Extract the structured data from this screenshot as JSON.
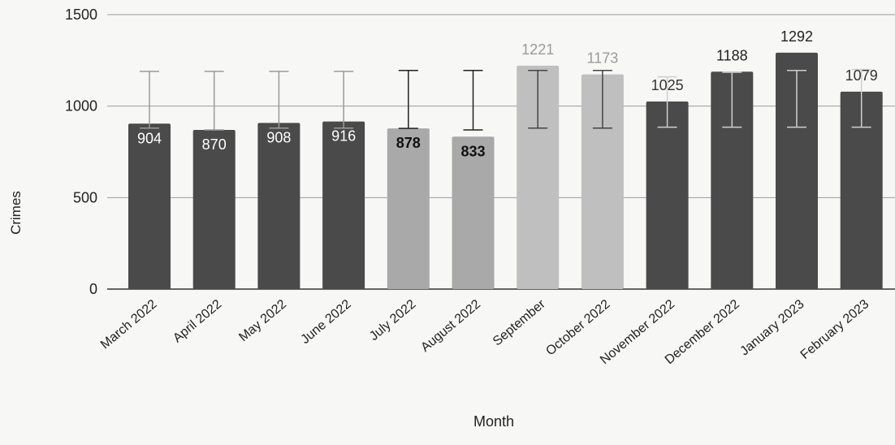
{
  "chart_data": {
    "type": "bar",
    "title": "",
    "xlabel": "Month",
    "ylabel": "Crimes",
    "ylim": [
      0,
      1500
    ],
    "yticks": [
      0,
      500,
      1000,
      1500
    ],
    "grid": true,
    "legend": "none",
    "categories": [
      "March 2022",
      "April 2022",
      "May 2022",
      "June 2022",
      "July 2022",
      "August 2022",
      "September",
      "October 2022",
      "November 2022",
      "December 2022",
      "January 2023",
      "February 2023"
    ],
    "values": [
      904,
      870,
      908,
      916,
      878,
      833,
      1221,
      1173,
      1025,
      1188,
      1292,
      1079
    ],
    "error_bars": [
      {
        "low": 880,
        "high": 1190
      },
      {
        "low": 870,
        "high": 1190
      },
      {
        "low": 880,
        "high": 1190
      },
      {
        "low": 880,
        "high": 1190
      },
      {
        "low": 878,
        "high": 1195
      },
      {
        "low": 870,
        "high": 1195
      },
      {
        "low": 880,
        "high": 1195
      },
      {
        "low": 880,
        "high": 1195
      },
      {
        "low": 885,
        "high": 1160
      },
      {
        "low": 885,
        "high": 1185
      },
      {
        "low": 885,
        "high": 1195
      },
      {
        "low": 885,
        "high": 1200
      }
    ],
    "bar_colors": [
      "#4a4a4a",
      "#4a4a4a",
      "#4a4a4a",
      "#4a4a4a",
      "#a9a9a9",
      "#a9a9a9",
      "#bfbfbf",
      "#bfbfbf",
      "#4a4a4a",
      "#4a4a4a",
      "#4a4a4a",
      "#4a4a4a"
    ],
    "label_colors": [
      "#ffffff",
      "#ffffff",
      "#ffffff",
      "#ffffff",
      "#111111",
      "#111111",
      "#9a9a9a",
      "#9a9a9a",
      "#333333",
      "#222222",
      "#222222",
      "#333333"
    ],
    "label_inside": [
      true,
      true,
      true,
      true,
      true,
      true,
      false,
      false,
      false,
      false,
      false,
      false
    ],
    "errorbar_colors": [
      "#9a9a9a",
      "#9a9a9a",
      "#9a9a9a",
      "#9a9a9a",
      "#222222",
      "#222222",
      "#444444",
      "#444444",
      "#cfcfcf",
      "#cfcfcf",
      "#cfcfcf",
      "#cfcfcf"
    ]
  }
}
